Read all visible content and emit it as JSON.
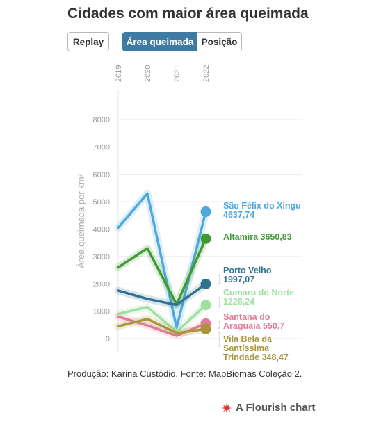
{
  "title": "Cidades com maior área queimada",
  "controls": {
    "replay": "Replay",
    "tab_area": "Área queimada",
    "tab_position": "Posição"
  },
  "footer": "Produção: Karina Custódio, Fonte: MapBiomas Coleção 2.",
  "brand": "A Flourish chart",
  "chart_data": {
    "type": "line",
    "title": "Cidades com maior área queimada",
    "ylabel": "Área queimada por km²",
    "x": [
      "2019",
      "2020",
      "2021",
      "2022"
    ],
    "ylim": [
      0,
      8000
    ],
    "yticks": [
      "0",
      "1000",
      "2000",
      "3000",
      "4000",
      "5000",
      "6000",
      "7000",
      "8000"
    ],
    "grid": true,
    "series": [
      {
        "name": "São Félix do Xingu",
        "label_value": "4637,74",
        "color": "#4ea8dc",
        "values": [
          4050,
          5300,
          400,
          4637.74
        ]
      },
      {
        "name": "Altamira",
        "label_value": "3650,83",
        "color": "#3f9a34",
        "values": [
          2600,
          3300,
          1250,
          3650.83
        ]
      },
      {
        "name": "Porto Velho",
        "label_value": "1997,07",
        "color": "#2f7390",
        "values": [
          1750,
          1450,
          1230,
          1997.07
        ]
      },
      {
        "name": "Cumaru do Norte",
        "label_value": "1226,24",
        "color": "#9ee0a0",
        "values": [
          900,
          1150,
          250,
          1226.24
        ]
      },
      {
        "name": "Santana do Araguaia",
        "label_value": "550,7",
        "color": "#e07a96",
        "values": [
          800,
          480,
          100,
          550.7
        ]
      },
      {
        "name": "Vila Bela da Santíssima Trindade",
        "label_value": "348,47",
        "color": "#a9963a",
        "values": [
          450,
          720,
          200,
          348.47
        ]
      }
    ],
    "labels": [
      {
        "lines": [
          "São Félix do Xingu",
          "4637,74"
        ],
        "color": "#4ea8dc"
      },
      {
        "lines": [
          "Altamira 3650,83"
        ],
        "color": "#3f9a34"
      },
      {
        "lines": [
          "Porto Velho",
          "1997,07"
        ],
        "color": "#2f7390"
      },
      {
        "lines": [
          "Cumaru do Norte",
          "1226,24"
        ],
        "color": "#9ee0a0"
      },
      {
        "lines": [
          "Santana do",
          "Araguaia 550,7"
        ],
        "color": "#e07a96"
      },
      {
        "lines": [
          "Vila Bela da",
          "Santíssima",
          "Trindade 348,47"
        ],
        "color": "#a9963a"
      }
    ]
  }
}
